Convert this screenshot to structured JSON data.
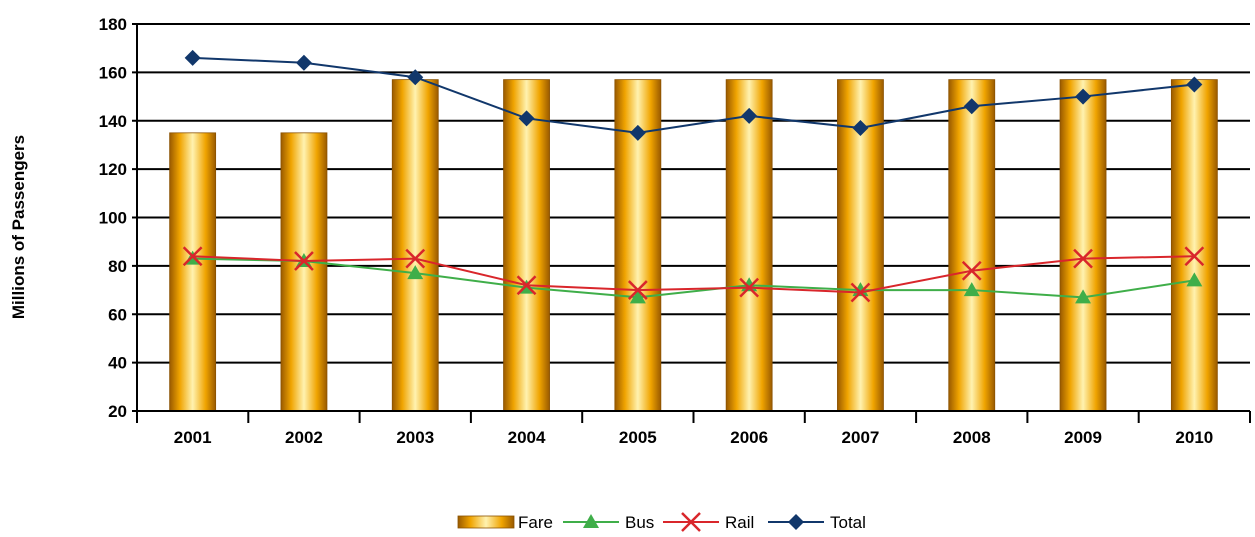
{
  "chart_data": {
    "type": "bar",
    "categories": [
      "2001",
      "2002",
      "2003",
      "2004",
      "2005",
      "2006",
      "2007",
      "2008",
      "2009",
      "2010"
    ],
    "ylabel": "Millions of Passengers",
    "xlabel": "",
    "ylim": [
      20,
      180
    ],
    "yticks": [
      20,
      40,
      60,
      80,
      100,
      120,
      140,
      160,
      180
    ],
    "grid": true,
    "legend_position": "bottom",
    "series": [
      {
        "name": "Fare",
        "kind": "bar",
        "color": "#f5b000",
        "values": [
          135,
          135,
          157,
          157,
          157,
          157,
          157,
          157,
          157,
          157
        ]
      },
      {
        "name": "Bus",
        "kind": "line",
        "marker": "triangle",
        "color": "#3fae49",
        "values": [
          83,
          82,
          77,
          71,
          67,
          72,
          70,
          70,
          67,
          74
        ]
      },
      {
        "name": "Rail",
        "kind": "line",
        "marker": "x",
        "color": "#d9262b",
        "values": [
          84,
          82,
          83,
          72,
          70,
          71,
          69,
          78,
          83,
          84
        ]
      },
      {
        "name": "Total",
        "kind": "line",
        "marker": "diamond",
        "color": "#11376b",
        "values": [
          166,
          164,
          158,
          141,
          135,
          142,
          137,
          146,
          150,
          155
        ]
      }
    ]
  }
}
